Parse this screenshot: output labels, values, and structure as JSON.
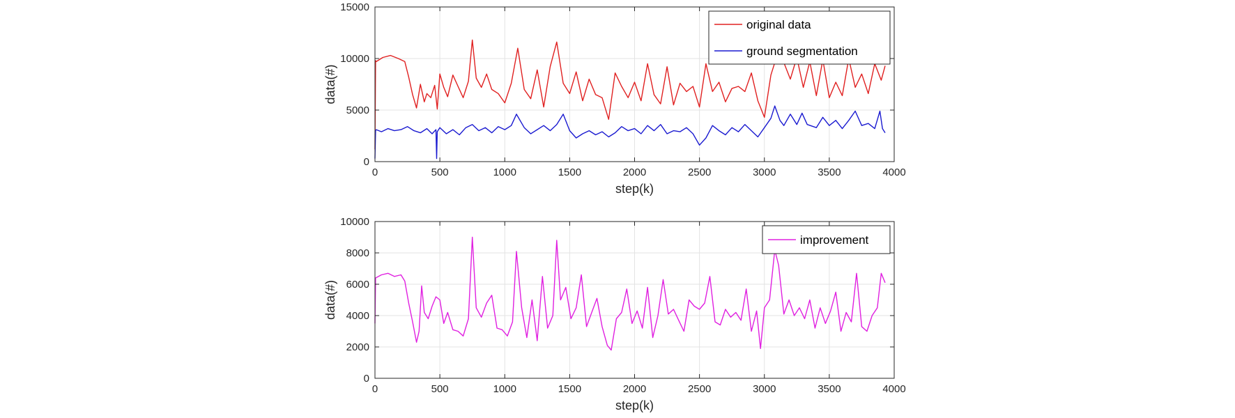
{
  "chart_data": [
    {
      "type": "line",
      "title": "",
      "xlabel": "step(k)",
      "ylabel": "data(#)",
      "xlim": [
        0,
        4000
      ],
      "ylim": [
        0,
        15000
      ],
      "xticks": [
        0,
        500,
        1000,
        1500,
        2000,
        2500,
        3000,
        3500,
        4000
      ],
      "yticks": [
        0,
        5000,
        10000,
        15000
      ],
      "grid": true,
      "legend_position": "top-right",
      "series": [
        {
          "name": "original data",
          "color": "#e02020",
          "x": [
            0,
            5,
            10,
            60,
            120,
            180,
            230,
            260,
            290,
            320,
            350,
            380,
            400,
            430,
            460,
            480,
            500,
            530,
            560,
            600,
            640,
            680,
            720,
            750,
            780,
            820,
            860,
            900,
            950,
            1000,
            1050,
            1100,
            1150,
            1200,
            1250,
            1300,
            1350,
            1400,
            1450,
            1500,
            1550,
            1600,
            1650,
            1700,
            1750,
            1800,
            1850,
            1900,
            1950,
            2000,
            2050,
            2100,
            2150,
            2200,
            2250,
            2300,
            2350,
            2400,
            2450,
            2500,
            2550,
            2600,
            2650,
            2700,
            2750,
            2800,
            2850,
            2900,
            2950,
            3000,
            3050,
            3100,
            3150,
            3200,
            3250,
            3300,
            3350,
            3400,
            3450,
            3500,
            3550,
            3600,
            3650,
            3700,
            3750,
            3800,
            3850,
            3900,
            3930
          ],
          "values": [
            1200,
            9800,
            9700,
            10100,
            10300,
            10000,
            9700,
            8200,
            6500,
            5200,
            7500,
            5800,
            6600,
            6200,
            7400,
            5100,
            8500,
            7200,
            6300,
            8400,
            7300,
            6200,
            7800,
            11800,
            8100,
            7200,
            8500,
            7000,
            6600,
            5700,
            7600,
            11000,
            7000,
            6100,
            8900,
            5300,
            9200,
            11600,
            7600,
            6600,
            8700,
            5900,
            8000,
            6500,
            6200,
            4100,
            8600,
            7300,
            6200,
            7700,
            5900,
            9500,
            6500,
            5600,
            9200,
            5500,
            7600,
            6800,
            7300,
            5300,
            9500,
            6800,
            7700,
            5800,
            7100,
            7300,
            6800,
            8600,
            5900,
            4300,
            8400,
            10400,
            9600,
            8000,
            10100,
            7200,
            9700,
            6400,
            9900,
            6200,
            7700,
            6400,
            10000,
            7200,
            8500,
            6600,
            9500,
            7900,
            9300
          ]
        },
        {
          "name": "ground segmentation",
          "color": "#1a1ad0",
          "x": [
            0,
            5,
            10,
            50,
            100,
            150,
            200,
            250,
            300,
            350,
            400,
            440,
            470,
            475,
            480,
            485,
            500,
            550,
            600,
            650,
            700,
            750,
            800,
            850,
            900,
            950,
            1000,
            1050,
            1090,
            1150,
            1200,
            1250,
            1300,
            1350,
            1400,
            1450,
            1500,
            1550,
            1600,
            1650,
            1700,
            1750,
            1800,
            1850,
            1900,
            1950,
            2000,
            2050,
            2100,
            2150,
            2200,
            2250,
            2300,
            2350,
            2400,
            2450,
            2500,
            2550,
            2600,
            2650,
            2700,
            2750,
            2800,
            2850,
            2900,
            2950,
            3000,
            3050,
            3080,
            3120,
            3150,
            3200,
            3250,
            3290,
            3330,
            3400,
            3450,
            3500,
            3550,
            3600,
            3650,
            3700,
            3750,
            3800,
            3850,
            3890,
            3910,
            3930
          ],
          "values": [
            300,
            3000,
            3100,
            2900,
            3200,
            3000,
            3100,
            3400,
            3000,
            2800,
            3200,
            2700,
            3100,
            300,
            2900,
            3000,
            3300,
            2700,
            3100,
            2600,
            3300,
            3600,
            3000,
            3300,
            2800,
            3400,
            3100,
            3500,
            4600,
            3300,
            2700,
            3100,
            3500,
            3000,
            3600,
            4600,
            3000,
            2300,
            2700,
            3000,
            2600,
            2900,
            2400,
            2800,
            3400,
            3000,
            3200,
            2700,
            3500,
            3000,
            3600,
            2700,
            3000,
            2900,
            3300,
            2700,
            1600,
            2300,
            3500,
            3000,
            2600,
            3300,
            2900,
            3600,
            3000,
            2400,
            3300,
            4200,
            5400,
            4000,
            3500,
            4600,
            3600,
            4700,
            3600,
            3300,
            4300,
            3500,
            4000,
            3200,
            4000,
            4900,
            3500,
            3700,
            3200,
            4900,
            3200,
            2800
          ]
        }
      ]
    },
    {
      "type": "line",
      "title": "",
      "xlabel": "step(k)",
      "ylabel": "data(#)",
      "xlim": [
        0,
        4000
      ],
      "ylim": [
        0,
        10000
      ],
      "xticks": [
        0,
        500,
        1000,
        1500,
        2000,
        2500,
        3000,
        3500,
        4000
      ],
      "yticks": [
        0,
        2000,
        4000,
        6000,
        8000,
        10000
      ],
      "grid": true,
      "legend_position": "top-right",
      "series": [
        {
          "name": "improvement",
          "color": "#e020e0",
          "x": [
            0,
            5,
            50,
            100,
            150,
            200,
            230,
            260,
            290,
            320,
            340,
            360,
            380,
            410,
            440,
            470,
            500,
            530,
            560,
            600,
            640,
            680,
            720,
            750,
            780,
            820,
            860,
            900,
            940,
            980,
            1020,
            1060,
            1090,
            1130,
            1170,
            1210,
            1250,
            1290,
            1330,
            1370,
            1400,
            1430,
            1470,
            1510,
            1550,
            1590,
            1630,
            1670,
            1710,
            1750,
            1790,
            1820,
            1860,
            1900,
            1940,
            1980,
            2020,
            2060,
            2100,
            2140,
            2180,
            2220,
            2260,
            2300,
            2340,
            2380,
            2420,
            2460,
            2500,
            2540,
            2580,
            2620,
            2660,
            2700,
            2740,
            2780,
            2820,
            2860,
            2900,
            2940,
            2970,
            3000,
            3040,
            3080,
            3110,
            3150,
            3190,
            3230,
            3270,
            3310,
            3350,
            3390,
            3430,
            3470,
            3510,
            3550,
            3590,
            3630,
            3670,
            3710,
            3750,
            3790,
            3830,
            3870,
            3900,
            3930
          ],
          "values": [
            3500,
            6400,
            6600,
            6700,
            6500,
            6600,
            6200,
            4800,
            3600,
            2300,
            3000,
            5900,
            4200,
            3800,
            4600,
            5200,
            5000,
            3500,
            4200,
            3100,
            3000,
            2700,
            3800,
            9000,
            4500,
            3900,
            4800,
            5300,
            3200,
            3100,
            2700,
            3600,
            8100,
            4500,
            2600,
            5000,
            2400,
            6500,
            3200,
            4000,
            8800,
            5000,
            5800,
            3800,
            4500,
            6600,
            3300,
            4200,
            5100,
            3300,
            2100,
            1800,
            3800,
            4200,
            5700,
            3500,
            4300,
            3200,
            5800,
            2600,
            4000,
            6300,
            4100,
            4400,
            3700,
            3000,
            5000,
            4600,
            4400,
            4800,
            6500,
            3600,
            3400,
            4400,
            3900,
            4200,
            3700,
            5700,
            3000,
            4300,
            1900,
            4500,
            5000,
            8200,
            7200,
            4100,
            5000,
            4000,
            4500,
            3800,
            5000,
            3200,
            4500,
            3500,
            4300,
            5500,
            3000,
            4200,
            3600,
            6700,
            3300,
            3000,
            4000,
            4500,
            6700,
            6100
          ]
        }
      ]
    }
  ]
}
